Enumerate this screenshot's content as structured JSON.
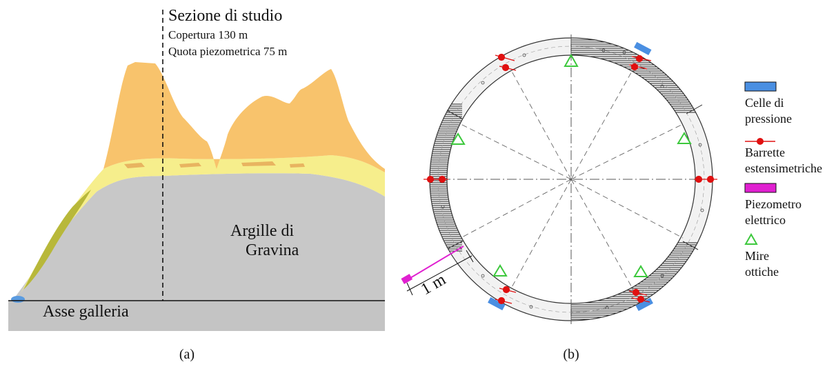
{
  "panel_a": {
    "title": "Sezione di studio",
    "cover": "Copertura 130 m",
    "piezometric": "Quota piezometrica 75 m",
    "clay_line1": "Argille di",
    "clay_line2": "Gravina",
    "axis": "Asse galleria",
    "caption": "(a)",
    "colors": {
      "orange": "#F8C36C",
      "yellow": "#F6EE8C",
      "gray": "#C8C8C8",
      "olive": "#B8B83A",
      "blue": "#5A9BE0"
    }
  },
  "panel_b": {
    "scale_label": "1 m",
    "caption": "(b)",
    "colors": {
      "cell": "#4A8FE2",
      "bar": "#E01010",
      "piezo": "#E020D0",
      "target": "#3CC83C"
    }
  },
  "legend": {
    "items": [
      {
        "icon": "pressure-cell-icon",
        "line1": "Celle di",
        "line2": "pressione"
      },
      {
        "icon": "strain-bar-icon",
        "line1": "Barrette",
        "line2": "estensimetriche"
      },
      {
        "icon": "piezometer-icon",
        "line1": "Piezometro",
        "line2": "elettrico"
      },
      {
        "icon": "optical-target-icon",
        "line1": "Mire",
        "line2": "ottiche"
      }
    ]
  }
}
